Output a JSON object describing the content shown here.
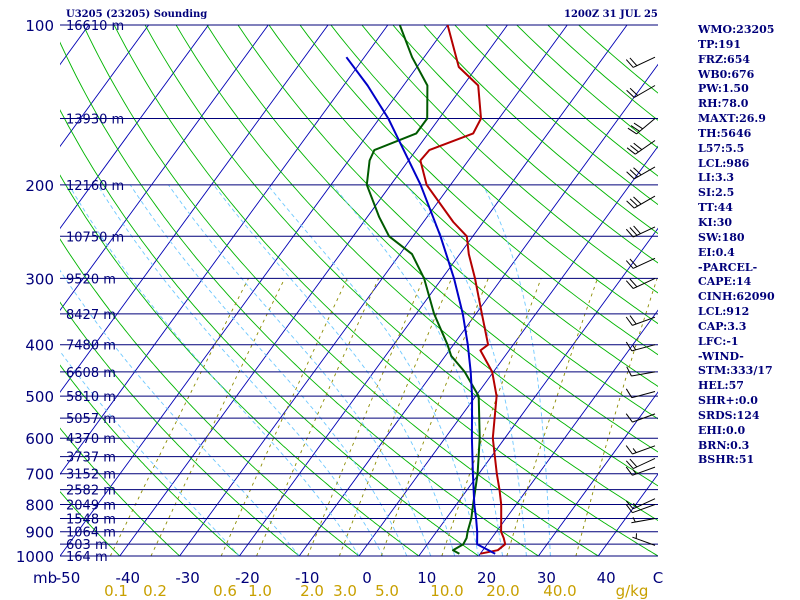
{
  "header": {
    "title": "U3205 (23205) Sounding",
    "time": "1200Z 31 JUL 25"
  },
  "params": [
    "WMO:23205",
    "TP:191",
    "FRZ:654",
    "WB0:676",
    "PW:1.50",
    "RH:78.0",
    "MAXT:26.9",
    "TH:5646",
    "L57:5.5",
    "LCL:986",
    "LI:3.3",
    "SI:2.5",
    "TT:44",
    "KI:30",
    "SW:180",
    "EI:0.4",
    "-PARCEL-",
    "CAPE:14",
    "CINH:62090",
    "LCL:912",
    "CAP:3.3",
    "LFC:-1",
    "-WIND-",
    "STM:333/17",
    "HEL:57",
    "SHR+:0.0",
    "SRDS:124",
    "EHI:0.0",
    "BRN:0.3",
    "BSHR:51"
  ],
  "colors": {
    "isobar": "#00007a",
    "isotherm": "#0000b4",
    "dry_adiabat": "#00b400",
    "moist_adiabat": "#6ec8ff",
    "mixing_ratio": "#8c8c00",
    "temperature": "#b40000",
    "dewpoint": "#005a00",
    "parcel": "#0000c8",
    "label": "#00007a",
    "mixing_label": "#c8a000",
    "wind": "#000000"
  },
  "chart_data": {
    "type": "skew-t",
    "title": "U3205 (23205) Sounding",
    "valid_time": "1200Z 31 JUL 25",
    "pressure_range_mb": [
      1000,
      100
    ],
    "temperature_range_c": [
      -50,
      50
    ],
    "temperature_axis_label": "mb",
    "pressure_ticks": [
      100,
      200,
      300,
      400,
      500,
      600,
      700,
      800,
      900,
      1000
    ],
    "temperature_ticks": [
      -50,
      -40,
      -30,
      -20,
      -10,
      0,
      10,
      20,
      30,
      40
    ],
    "temperature_tick_labels": [
      "-50",
      "-40",
      "-30",
      "-20",
      "-10",
      "0",
      "10",
      "20",
      "30",
      "40"
    ],
    "mixing_ratio_labels": [
      "0.1",
      "0.2",
      "0.6",
      "1.0",
      "2.0",
      "3.0",
      "5.0",
      "10.0",
      "20.0",
      "40.0"
    ],
    "mixing_ratio_values": [
      0.1,
      0.2,
      0.6,
      1.0,
      2.0,
      3.0,
      5.0,
      10.0,
      20.0,
      40.0
    ],
    "mixing_ratio_unit": "g/kg",
    "heights": [
      {
        "p": 100,
        "label": "16610 m"
      },
      {
        "p": 150,
        "label": "13930 m"
      },
      {
        "p": 200,
        "label": "12160 m"
      },
      {
        "p": 250,
        "label": "10750 m"
      },
      {
        "p": 300,
        "label": "9520 m"
      },
      {
        "p": 350,
        "label": "8427 m"
      },
      {
        "p": 400,
        "label": "7480 m"
      },
      {
        "p": 450,
        "label": "6608 m"
      },
      {
        "p": 500,
        "label": "5810 m"
      },
      {
        "p": 550,
        "label": "5057 m"
      },
      {
        "p": 600,
        "label": "4370 m"
      },
      {
        "p": 650,
        "label": "3737 m"
      },
      {
        "p": 700,
        "label": "3152 m"
      },
      {
        "p": 750,
        "label": "2582 m"
      },
      {
        "p": 800,
        "label": "2049 m"
      },
      {
        "p": 850,
        "label": "1548 m"
      },
      {
        "p": 900,
        "label": "1064 m"
      },
      {
        "p": 950,
        "label": "603 m"
      },
      {
        "p": 1000,
        "label": "164 m"
      }
    ],
    "series": [
      {
        "key": "temperature",
        "points": [
          [
            990,
            20.0
          ],
          [
            975,
            22.5
          ],
          [
            950,
            23.0
          ],
          [
            925,
            22.0
          ],
          [
            900,
            20.8
          ],
          [
            850,
            19.2
          ],
          [
            800,
            17.5
          ],
          [
            750,
            15.4
          ],
          [
            700,
            13.0
          ],
          [
            600,
            8.0
          ],
          [
            500,
            3.5
          ],
          [
            450,
            -0.2
          ],
          [
            410,
            -4.8
          ],
          [
            400,
            -4.2
          ],
          [
            350,
            -9.0
          ],
          [
            300,
            -14.5
          ],
          [
            270,
            -18.5
          ],
          [
            250,
            -21.0
          ],
          [
            235,
            -25.0
          ],
          [
            200,
            -34.0
          ],
          [
            180,
            -38.0
          ],
          [
            172,
            -37.8
          ],
          [
            160,
            -32.5
          ],
          [
            150,
            -33.0
          ],
          [
            130,
            -37.5
          ],
          [
            120,
            -43.0
          ],
          [
            100,
            -50.0
          ]
        ]
      },
      {
        "key": "dewpoint",
        "points": [
          [
            990,
            16.5
          ],
          [
            975,
            15.0
          ],
          [
            950,
            16.0
          ],
          [
            925,
            15.8
          ],
          [
            900,
            15.2
          ],
          [
            850,
            14.2
          ],
          [
            800,
            12.8
          ],
          [
            700,
            9.8
          ],
          [
            600,
            5.8
          ],
          [
            500,
            0.5
          ],
          [
            450,
            -4.8
          ],
          [
            420,
            -9.0
          ],
          [
            400,
            -11.0
          ],
          [
            350,
            -17.0
          ],
          [
            300,
            -23.0
          ],
          [
            270,
            -28.0
          ],
          [
            250,
            -34.0
          ],
          [
            230,
            -38.0
          ],
          [
            200,
            -44.0
          ],
          [
            180,
            -46.5
          ],
          [
            172,
            -47.0
          ],
          [
            160,
            -42.0
          ],
          [
            150,
            -42.0
          ],
          [
            130,
            -46.0
          ],
          [
            115,
            -52.0
          ],
          [
            100,
            -58.0
          ]
        ]
      },
      {
        "key": "parcel",
        "points": [
          [
            990,
            22.5
          ],
          [
            950,
            18.3
          ],
          [
            900,
            16.8
          ],
          [
            850,
            15.0
          ],
          [
            800,
            13.0
          ],
          [
            700,
            9.0
          ],
          [
            600,
            4.5
          ],
          [
            500,
            -0.6
          ],
          [
            450,
            -3.8
          ],
          [
            400,
            -7.6
          ],
          [
            350,
            -12.2
          ],
          [
            300,
            -18.0
          ],
          [
            250,
            -25.4
          ],
          [
            200,
            -35.0
          ],
          [
            150,
            -48.5
          ],
          [
            130,
            -56.0
          ],
          [
            115,
            -63.0
          ]
        ]
      }
    ],
    "wind_barbs": [
      {
        "p": 955,
        "dir": 290,
        "spd": 3
      },
      {
        "p": 850,
        "dir": 260,
        "spd": 6
      },
      {
        "p": 800,
        "dir": 250,
        "spd": 10
      },
      {
        "p": 780,
        "dir": 245,
        "spd": 14
      },
      {
        "p": 680,
        "dir": 250,
        "spd": 14
      },
      {
        "p": 655,
        "dir": 245,
        "spd": 18
      },
      {
        "p": 620,
        "dir": 250,
        "spd": 14
      },
      {
        "p": 540,
        "dir": 250,
        "spd": 10
      },
      {
        "p": 490,
        "dir": 255,
        "spd": 10
      },
      {
        "p": 450,
        "dir": 260,
        "spd": 10
      },
      {
        "p": 400,
        "dir": 255,
        "spd": 14
      },
      {
        "p": 355,
        "dir": 250,
        "spd": 18
      },
      {
        "p": 300,
        "dir": 245,
        "spd": 18
      },
      {
        "p": 275,
        "dir": 245,
        "spd": 22
      },
      {
        "p": 240,
        "dir": 245,
        "spd": 28
      },
      {
        "p": 210,
        "dir": 240,
        "spd": 32
      },
      {
        "p": 185,
        "dir": 240,
        "spd": 32
      },
      {
        "p": 165,
        "dir": 235,
        "spd": 30
      },
      {
        "p": 150,
        "dir": 230,
        "spd": 28
      },
      {
        "p": 130,
        "dir": 240,
        "spd": 22
      },
      {
        "p": 115,
        "dir": 245,
        "spd": 18
      }
    ]
  }
}
